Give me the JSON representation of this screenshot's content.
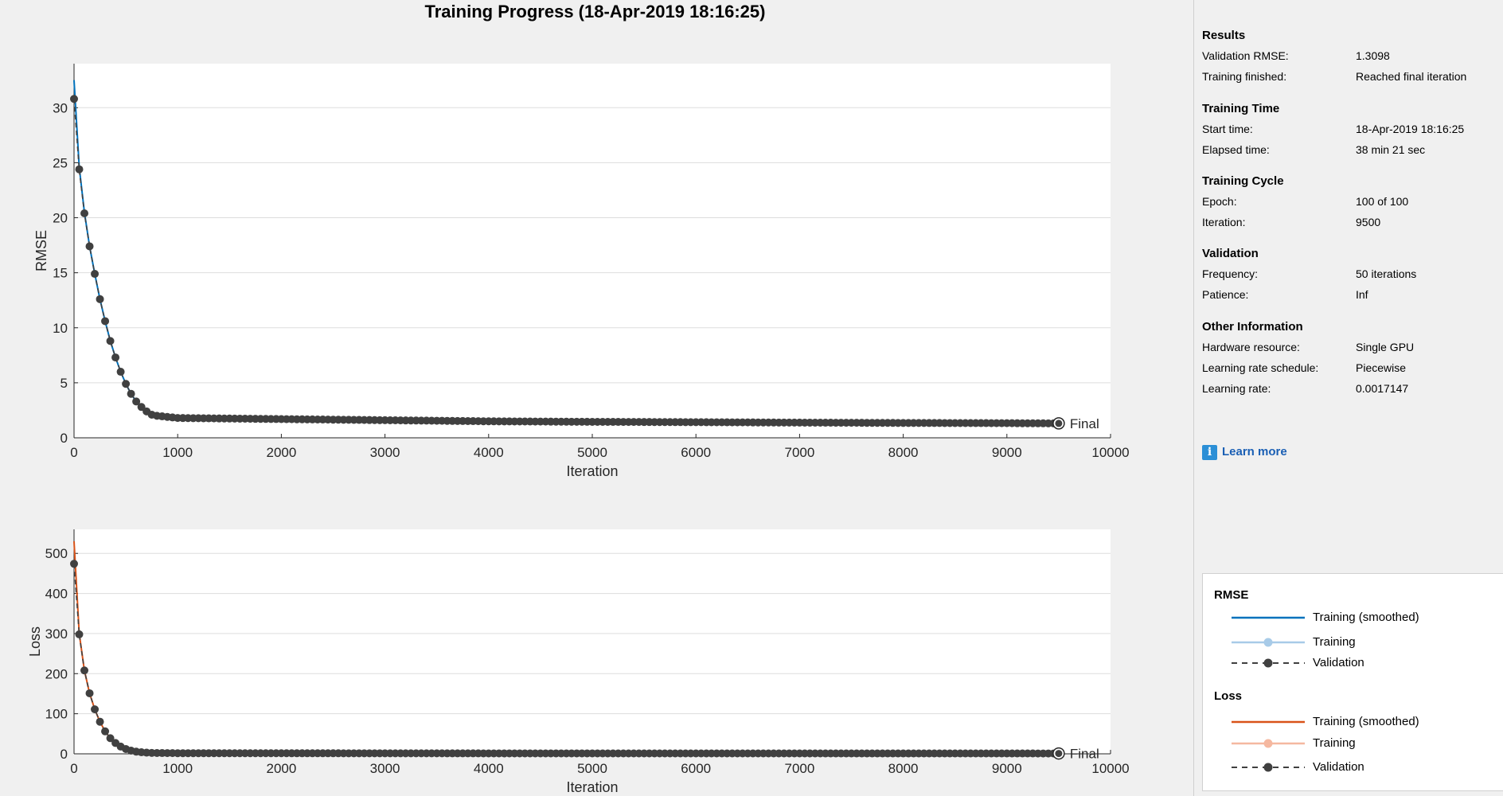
{
  "window": {
    "title": "Training Progress (18-Apr-2019 18:16:25)"
  },
  "colors": {
    "rmse_smoothed": "#0072bd",
    "rmse_training": "#a8cbe8",
    "loss_smoothed": "#d95319",
    "loss_training": "#f5b8a0",
    "validation": "#404040",
    "grid": "#dddddd"
  },
  "chart_data": [
    {
      "type": "line",
      "name": "rmse",
      "xlabel": "Iteration",
      "ylabel": "RMSE",
      "xlim": [
        0,
        10000
      ],
      "ylim": [
        0,
        34
      ],
      "xticks": [
        0,
        1000,
        2000,
        3000,
        4000,
        5000,
        6000,
        7000,
        8000,
        9000,
        10000
      ],
      "yticks": [
        0,
        5,
        10,
        15,
        20,
        25,
        30
      ],
      "grid": "horizontal",
      "final_label": "Final",
      "series": [
        {
          "name": "Validation",
          "style": "dashed-markers",
          "x": [
            0,
            50,
            100,
            150,
            200,
            250,
            300,
            350,
            400,
            450,
            500,
            550,
            600,
            650,
            700,
            750,
            800,
            850,
            900,
            950,
            1000,
            1500,
            2000,
            3000,
            4000,
            5000,
            6000,
            7000,
            8000,
            9000,
            9500
          ],
          "y": [
            30.8,
            24.4,
            20.4,
            17.4,
            14.9,
            12.6,
            10.6,
            8.8,
            7.3,
            6.0,
            4.9,
            4.0,
            3.3,
            2.8,
            2.4,
            2.1,
            2.0,
            1.95,
            1.9,
            1.85,
            1.8,
            1.75,
            1.7,
            1.6,
            1.5,
            1.45,
            1.42,
            1.38,
            1.35,
            1.33,
            1.31
          ]
        },
        {
          "name": "Training (smoothed)",
          "style": "solid",
          "x": [
            0,
            50,
            100,
            150,
            200,
            250,
            300,
            350,
            400,
            450,
            500,
            550,
            600,
            650,
            700,
            750,
            800,
            850,
            900,
            950,
            1000,
            1500,
            2000,
            3000,
            4000,
            5000,
            6000,
            7000,
            8000,
            9000,
            9500
          ],
          "y": [
            32.5,
            24.6,
            20.5,
            17.4,
            14.9,
            12.6,
            10.6,
            8.8,
            7.3,
            6.0,
            4.9,
            4.0,
            3.3,
            2.8,
            2.4,
            2.1,
            2.0,
            1.95,
            1.9,
            1.85,
            1.8,
            1.75,
            1.7,
            1.6,
            1.5,
            1.45,
            1.42,
            1.38,
            1.35,
            1.33,
            1.31
          ]
        }
      ]
    },
    {
      "type": "line",
      "name": "loss",
      "xlabel": "Iteration",
      "ylabel": "Loss",
      "xlim": [
        0,
        10000
      ],
      "ylim": [
        0,
        560
      ],
      "xticks": [
        0,
        1000,
        2000,
        3000,
        4000,
        5000,
        6000,
        7000,
        8000,
        9000,
        10000
      ],
      "yticks": [
        0,
        100,
        200,
        300,
        400,
        500
      ],
      "grid": "horizontal",
      "final_label": "Final",
      "series": [
        {
          "name": "Validation",
          "style": "dashed-markers",
          "x": [
            0,
            50,
            100,
            150,
            200,
            250,
            300,
            350,
            400,
            450,
            500,
            550,
            600,
            650,
            700,
            750,
            800,
            850,
            900,
            950,
            1000,
            2000,
            3000,
            4000,
            5000,
            6000,
            7000,
            8000,
            9000,
            9500
          ],
          "y": [
            474,
            298,
            208,
            151,
            111,
            80,
            56,
            39,
            27,
            18,
            12,
            8,
            5.4,
            3.9,
            2.9,
            2.2,
            2.0,
            1.9,
            1.8,
            1.7,
            1.6,
            1.45,
            1.3,
            1.1,
            1.05,
            1.0,
            0.95,
            0.9,
            0.88,
            0.86
          ]
        },
        {
          "name": "Training (smoothed)",
          "style": "solid",
          "x": [
            0,
            50,
            100,
            150,
            200,
            250,
            300,
            350,
            400,
            450,
            500,
            550,
            600,
            650,
            700,
            750,
            800,
            850,
            900,
            950,
            1000,
            2000,
            3000,
            4000,
            5000,
            6000,
            7000,
            8000,
            9000,
            9500
          ],
          "y": [
            530,
            300,
            208,
            151,
            111,
            80,
            56,
            39,
            27,
            18,
            12,
            8,
            5.4,
            3.9,
            2.9,
            2.2,
            2.0,
            1.9,
            1.8,
            1.7,
            1.6,
            1.45,
            1.3,
            1.1,
            1.05,
            1.0,
            0.95,
            0.9,
            0.88,
            0.86
          ]
        }
      ]
    }
  ],
  "panel": {
    "sections": [
      {
        "title": "Results",
        "rows": [
          {
            "key": "Validation RMSE:",
            "value": "1.3098"
          },
          {
            "key": "Training finished:",
            "value": "Reached final iteration"
          }
        ]
      },
      {
        "title": "Training Time",
        "rows": [
          {
            "key": "Start time:",
            "value": "18-Apr-2019 18:16:25"
          },
          {
            "key": "Elapsed time:",
            "value": "38 min 21 sec"
          }
        ]
      },
      {
        "title": "Training Cycle",
        "rows": [
          {
            "key": "Epoch:",
            "value": "100 of 100"
          },
          {
            "key": "Iteration:",
            "value": "9500"
          }
        ]
      },
      {
        "title": "Validation",
        "rows": [
          {
            "key": "Frequency:",
            "value": "50 iterations"
          },
          {
            "key": "Patience:",
            "value": "Inf"
          }
        ]
      },
      {
        "title": "Other Information",
        "rows": [
          {
            "key": "Hardware resource:",
            "value": "Single GPU"
          },
          {
            "key": "Learning rate schedule:",
            "value": "Piecewise"
          },
          {
            "key": "Learning rate:",
            "value": "0.0017147"
          }
        ]
      }
    ],
    "learn_more": {
      "icon": "info-icon",
      "icon_glyph": "i",
      "label": "Learn more"
    }
  },
  "legend": {
    "rmse_title": "RMSE",
    "loss_title": "Loss",
    "smoothed_label": "Training (smoothed)",
    "training_label": "Training",
    "validation_label": "Validation"
  }
}
